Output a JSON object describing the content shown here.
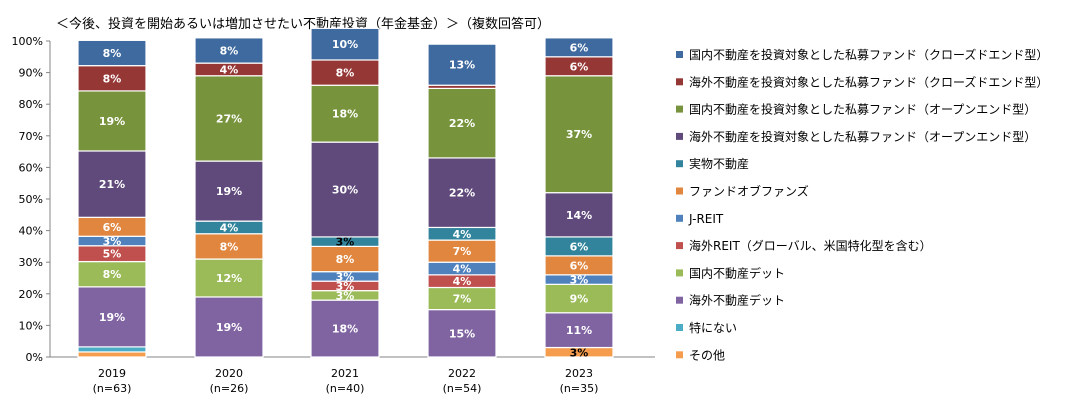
{
  "chart_data": {
    "type": "bar",
    "stacked": true,
    "title": "＜今後、投資を開始あるいは増加させたい不動産投資（年金基金）＞（複数回答可）",
    "categories": [
      "2019",
      "2020",
      "2021",
      "2022",
      "2023"
    ],
    "sample_sizes": [
      "(n=63)",
      "(n=26)",
      "(n=40)",
      "(n=54)",
      "(n=35)"
    ],
    "ylim": [
      0,
      100
    ],
    "yticks": [
      "0%",
      "10%",
      "20%",
      "30%",
      "40%",
      "50%",
      "60%",
      "70%",
      "80%",
      "90%",
      "100%"
    ],
    "legend_position": "right",
    "series": [
      {
        "name": "その他",
        "color": "#f59d4c",
        "values": [
          1.6,
          0,
          0,
          0,
          3
        ],
        "labels": [
          "",
          "",
          "",
          "",
          "3%"
        ]
      },
      {
        "name": "特にない",
        "color": "#4bacc6",
        "values": [
          1.6,
          0,
          0,
          0,
          0
        ],
        "labels": [
          "",
          "",
          "",
          "",
          ""
        ]
      },
      {
        "name": "海外不動産デット",
        "color": "#8064a2",
        "values": [
          19,
          19,
          18,
          15,
          11
        ],
        "labels": [
          "19%",
          "19%",
          "18%",
          "15%",
          "11%"
        ]
      },
      {
        "name": "国内不動産デット",
        "color": "#9bbb59",
        "values": [
          8,
          12,
          3,
          7,
          9
        ],
        "labels": [
          "8%",
          "12%",
          "3%",
          "7%",
          "9%"
        ]
      },
      {
        "name": "海外REIT（グローバル、米国特化型を含む）",
        "color": "#c0504d",
        "values": [
          5,
          0,
          3,
          4,
          0
        ],
        "labels": [
          "5%",
          "",
          "3%",
          "4%",
          ""
        ]
      },
      {
        "name": "J-REIT",
        "color": "#4f81bd",
        "values": [
          3,
          0,
          3,
          4,
          3
        ],
        "labels": [
          "3%",
          "",
          "3%",
          "4%",
          "3%"
        ]
      },
      {
        "name": "ファンドオブファンズ",
        "color": "#e0863e",
        "values": [
          6,
          8,
          8,
          7,
          6
        ],
        "labels": [
          "6%",
          "8%",
          "8%",
          "7%",
          "6%"
        ]
      },
      {
        "name": "実物不動産",
        "color": "#31849b",
        "values": [
          0,
          4,
          3,
          4,
          6
        ],
        "labels": [
          "",
          "4%",
          "3%",
          "4%",
          "6%"
        ]
      },
      {
        "name": "海外不動産を投資対象とした私募ファンド（オープンエンド型）",
        "color": "#604a7b",
        "values": [
          21,
          19,
          30,
          22,
          14
        ],
        "labels": [
          "21%",
          "19%",
          "30%",
          "22%",
          "14%"
        ]
      },
      {
        "name": "国内不動産を投資対象とした私募ファンド（オープンエンド型）",
        "color": "#77933c",
        "values": [
          19,
          27,
          18,
          22,
          37
        ],
        "labels": [
          "19%",
          "27%",
          "18%",
          "22%",
          "37%"
        ]
      },
      {
        "name": "海外不動産を投資対象とした私募ファンド（クローズドエンド型）",
        "color": "#953735",
        "values": [
          8,
          4,
          8,
          1,
          6
        ],
        "labels": [
          "8%",
          "4%",
          "8%",
          "",
          "6%"
        ]
      },
      {
        "name": "国内不動産を投資対象とした私募ファンド（クローズドエンド型）",
        "color": "#3e6aa0",
        "values": [
          8,
          8,
          10,
          13,
          6
        ],
        "labels": [
          "8%",
          "8%",
          "10%",
          "13%",
          "6%"
        ]
      }
    ],
    "legend_order": [
      "国内不動産を投資対象とした私募ファンド（クローズドエンド型）",
      "海外不動産を投資対象とした私募ファンド（クローズドエンド型）",
      "国内不動産を投資対象とした私募ファンド（オープンエンド型）",
      "海外不動産を投資対象とした私募ファンド（オープンエンド型）",
      "実物不動産",
      "ファンドオブファンズ",
      "J-REIT",
      "海外REIT（グローバル、米国特化型を含む）",
      "国内不動産デット",
      "海外不動産デット",
      "特にない",
      "その他"
    ]
  }
}
